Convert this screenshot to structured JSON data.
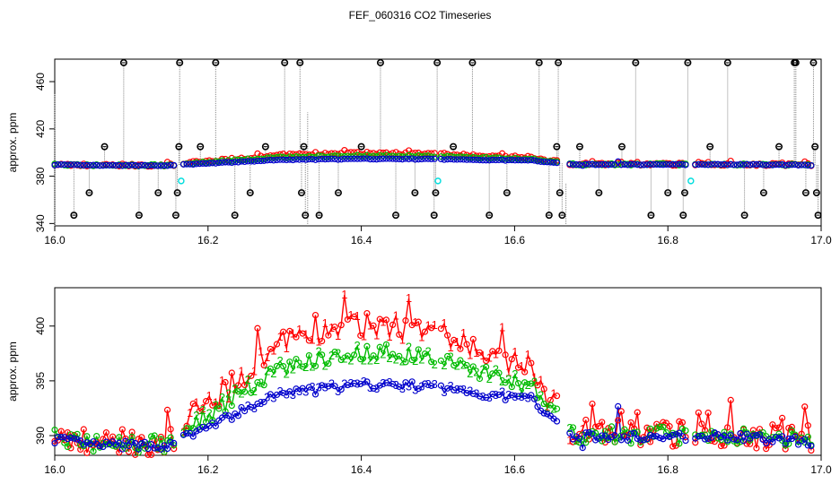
{
  "title": "FEF_060316  CO2 Timeseries",
  "colors": {
    "series1": "#ff0000",
    "series2": "#00bb00",
    "series3": "#0000cc",
    "outlier": "#000000",
    "flag": "#00dddd",
    "spike": "#888888",
    "box": "#000000"
  },
  "chart_data": [
    {
      "type": "scatter",
      "title": "",
      "xlabel": "",
      "ylabel": "approx. ppm",
      "xlim": [
        16.0,
        17.0
      ],
      "ylim": [
        338,
        479
      ],
      "xticks": [
        "16.0",
        "16.2",
        "16.4",
        "16.6",
        "16.8",
        "17.0"
      ],
      "yticks": [
        "340",
        "380",
        "420",
        "460"
      ],
      "series": [
        {
          "name": "1",
          "marker": "circle",
          "values_note": "red circles mostly hidden under blue"
        },
        {
          "name": "2",
          "marker": "circle"
        },
        {
          "name": "3",
          "marker": "circle"
        }
      ],
      "outliers": [
        {
          "x": 16.025,
          "y": 347
        },
        {
          "x": 16.045,
          "y": 366
        },
        {
          "x": 16.065,
          "y": 405
        },
        {
          "x": 16.09,
          "y": 476
        },
        {
          "x": 16.11,
          "y": 347
        },
        {
          "x": 16.135,
          "y": 366
        },
        {
          "x": 16.158,
          "y": 347
        },
        {
          "x": 16.16,
          "y": 366
        },
        {
          "x": 16.162,
          "y": 405
        },
        {
          "x": 16.163,
          "y": 476
        },
        {
          "x": 16.19,
          "y": 405
        },
        {
          "x": 16.21,
          "y": 476
        },
        {
          "x": 16.235,
          "y": 347
        },
        {
          "x": 16.255,
          "y": 366
        },
        {
          "x": 16.275,
          "y": 405
        },
        {
          "x": 16.3,
          "y": 476
        },
        {
          "x": 16.32,
          "y": 476
        },
        {
          "x": 16.322,
          "y": 366
        },
        {
          "x": 16.325,
          "y": 405
        },
        {
          "x": 16.327,
          "y": 347
        },
        {
          "x": 16.345,
          "y": 347
        },
        {
          "x": 16.37,
          "y": 366
        },
        {
          "x": 16.4,
          "y": 405
        },
        {
          "x": 16.425,
          "y": 476
        },
        {
          "x": 16.445,
          "y": 347
        },
        {
          "x": 16.47,
          "y": 366
        },
        {
          "x": 16.495,
          "y": 347
        },
        {
          "x": 16.497,
          "y": 366
        },
        {
          "x": 16.499,
          "y": 476
        },
        {
          "x": 16.52,
          "y": 405
        },
        {
          "x": 16.545,
          "y": 476
        },
        {
          "x": 16.567,
          "y": 347
        },
        {
          "x": 16.59,
          "y": 366
        },
        {
          "x": 16.632,
          "y": 476
        },
        {
          "x": 16.645,
          "y": 347
        },
        {
          "x": 16.655,
          "y": 405
        },
        {
          "x": 16.657,
          "y": 476
        },
        {
          "x": 16.659,
          "y": 366
        },
        {
          "x": 16.662,
          "y": 347
        },
        {
          "x": 16.685,
          "y": 405
        },
        {
          "x": 16.71,
          "y": 366
        },
        {
          "x": 16.74,
          "y": 405
        },
        {
          "x": 16.758,
          "y": 476
        },
        {
          "x": 16.778,
          "y": 347
        },
        {
          "x": 16.8,
          "y": 366
        },
        {
          "x": 16.82,
          "y": 347
        },
        {
          "x": 16.822,
          "y": 366
        },
        {
          "x": 16.826,
          "y": 476
        },
        {
          "x": 16.855,
          "y": 405
        },
        {
          "x": 16.878,
          "y": 476
        },
        {
          "x": 16.9,
          "y": 347
        },
        {
          "x": 16.925,
          "y": 366
        },
        {
          "x": 16.945,
          "y": 405
        },
        {
          "x": 16.965,
          "y": 476
        },
        {
          "x": 16.967,
          "y": 476
        },
        {
          "x": 16.98,
          "y": 366
        },
        {
          "x": 16.99,
          "y": 476
        },
        {
          "x": 16.992,
          "y": 405
        },
        {
          "x": 16.994,
          "y": 366
        },
        {
          "x": 16.996,
          "y": 347
        }
      ],
      "flagged": [
        {
          "x": 16.165,
          "y": 376
        },
        {
          "x": 16.5,
          "y": 376
        },
        {
          "x": 16.83,
          "y": 376
        }
      ],
      "spike_lines": [
        {
          "x": 16.0,
          "y": 450
        },
        {
          "x": 16.33,
          "y": 434
        },
        {
          "x": 16.667,
          "y": 374
        }
      ]
    },
    {
      "type": "line",
      "title": "",
      "xlabel": "",
      "ylabel": "approx. ppm",
      "xlim": [
        16.0,
        17.0
      ],
      "ylim": [
        388.2,
        403.5
      ],
      "xticks": [
        "16.0",
        "16.2",
        "16.4",
        "16.6",
        "16.8",
        "17.0"
      ],
      "yticks": [
        "390",
        "395",
        "400"
      ],
      "series": [
        {
          "name": "1",
          "label": "1",
          "color": "red"
        },
        {
          "name": "2",
          "label": "2",
          "color": "green"
        },
        {
          "name": "3",
          "label": "3",
          "color": "blue"
        }
      ]
    }
  ]
}
